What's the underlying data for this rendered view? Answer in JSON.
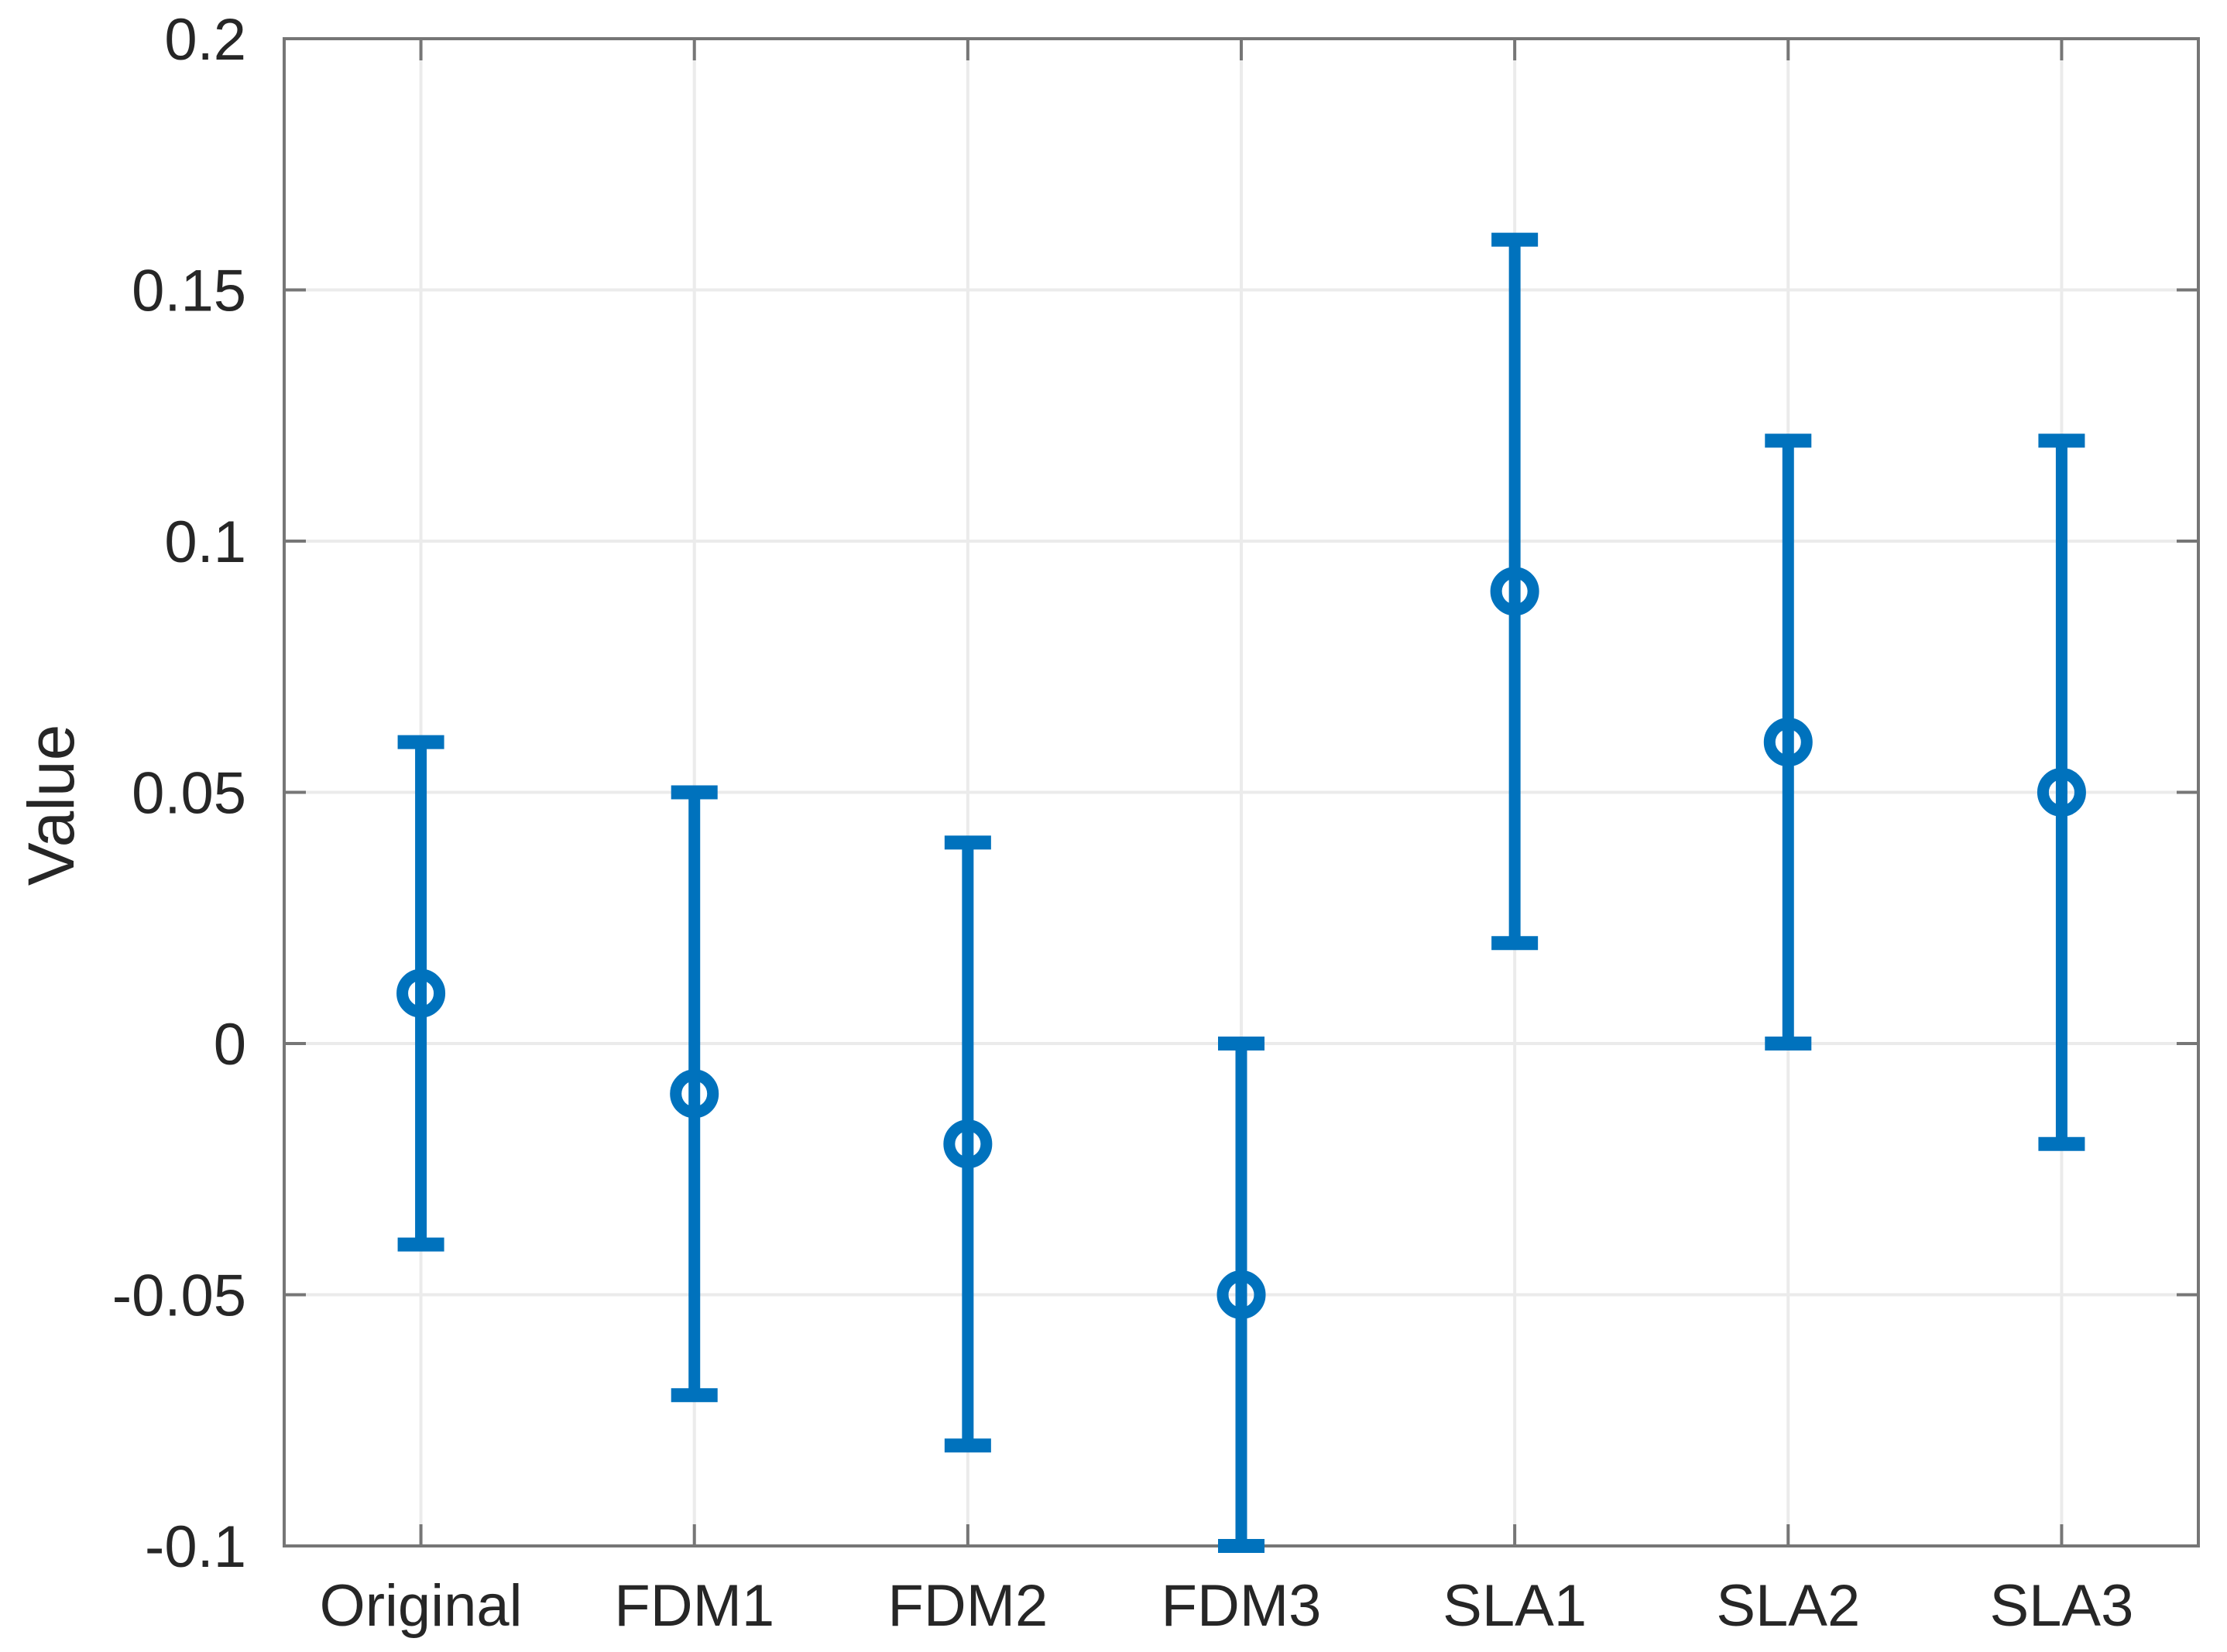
{
  "figure": {
    "background": "#ffffff"
  },
  "chart_data": {
    "type": "errorbar",
    "title": "",
    "xlabel": "",
    "ylabel": "Value",
    "categories": [
      "Original",
      "FDM1",
      "FDM2",
      "FDM3",
      "SLA1",
      "SLA2",
      "SLA3"
    ],
    "series": [
      {
        "name": "Value",
        "values": [
          0.01,
          -0.01,
          -0.02,
          -0.05,
          0.09,
          0.06,
          0.05
        ],
        "upper": [
          0.06,
          0.05,
          0.04,
          0.0,
          0.16,
          0.12,
          0.12
        ],
        "lower": [
          -0.04,
          -0.07,
          -0.08,
          -0.1,
          0.02,
          0.0,
          -0.02
        ]
      }
    ],
    "ylim": [
      -0.1,
      0.2
    ],
    "yticks": {
      "values": [
        0.2,
        0.15,
        0.1,
        0.05,
        0,
        -0.05,
        -0.1
      ],
      "labels": [
        "0.2",
        "0.15",
        "0.1",
        "0.05",
        "0",
        "-0.05",
        "-0.1"
      ]
    },
    "grid": true,
    "legend": "none",
    "marker": "open-circle",
    "colors": {
      "series": "#0072BD",
      "axis": "#767676",
      "grid": "#ebebeb",
      "tick_label": "#262626"
    }
  }
}
